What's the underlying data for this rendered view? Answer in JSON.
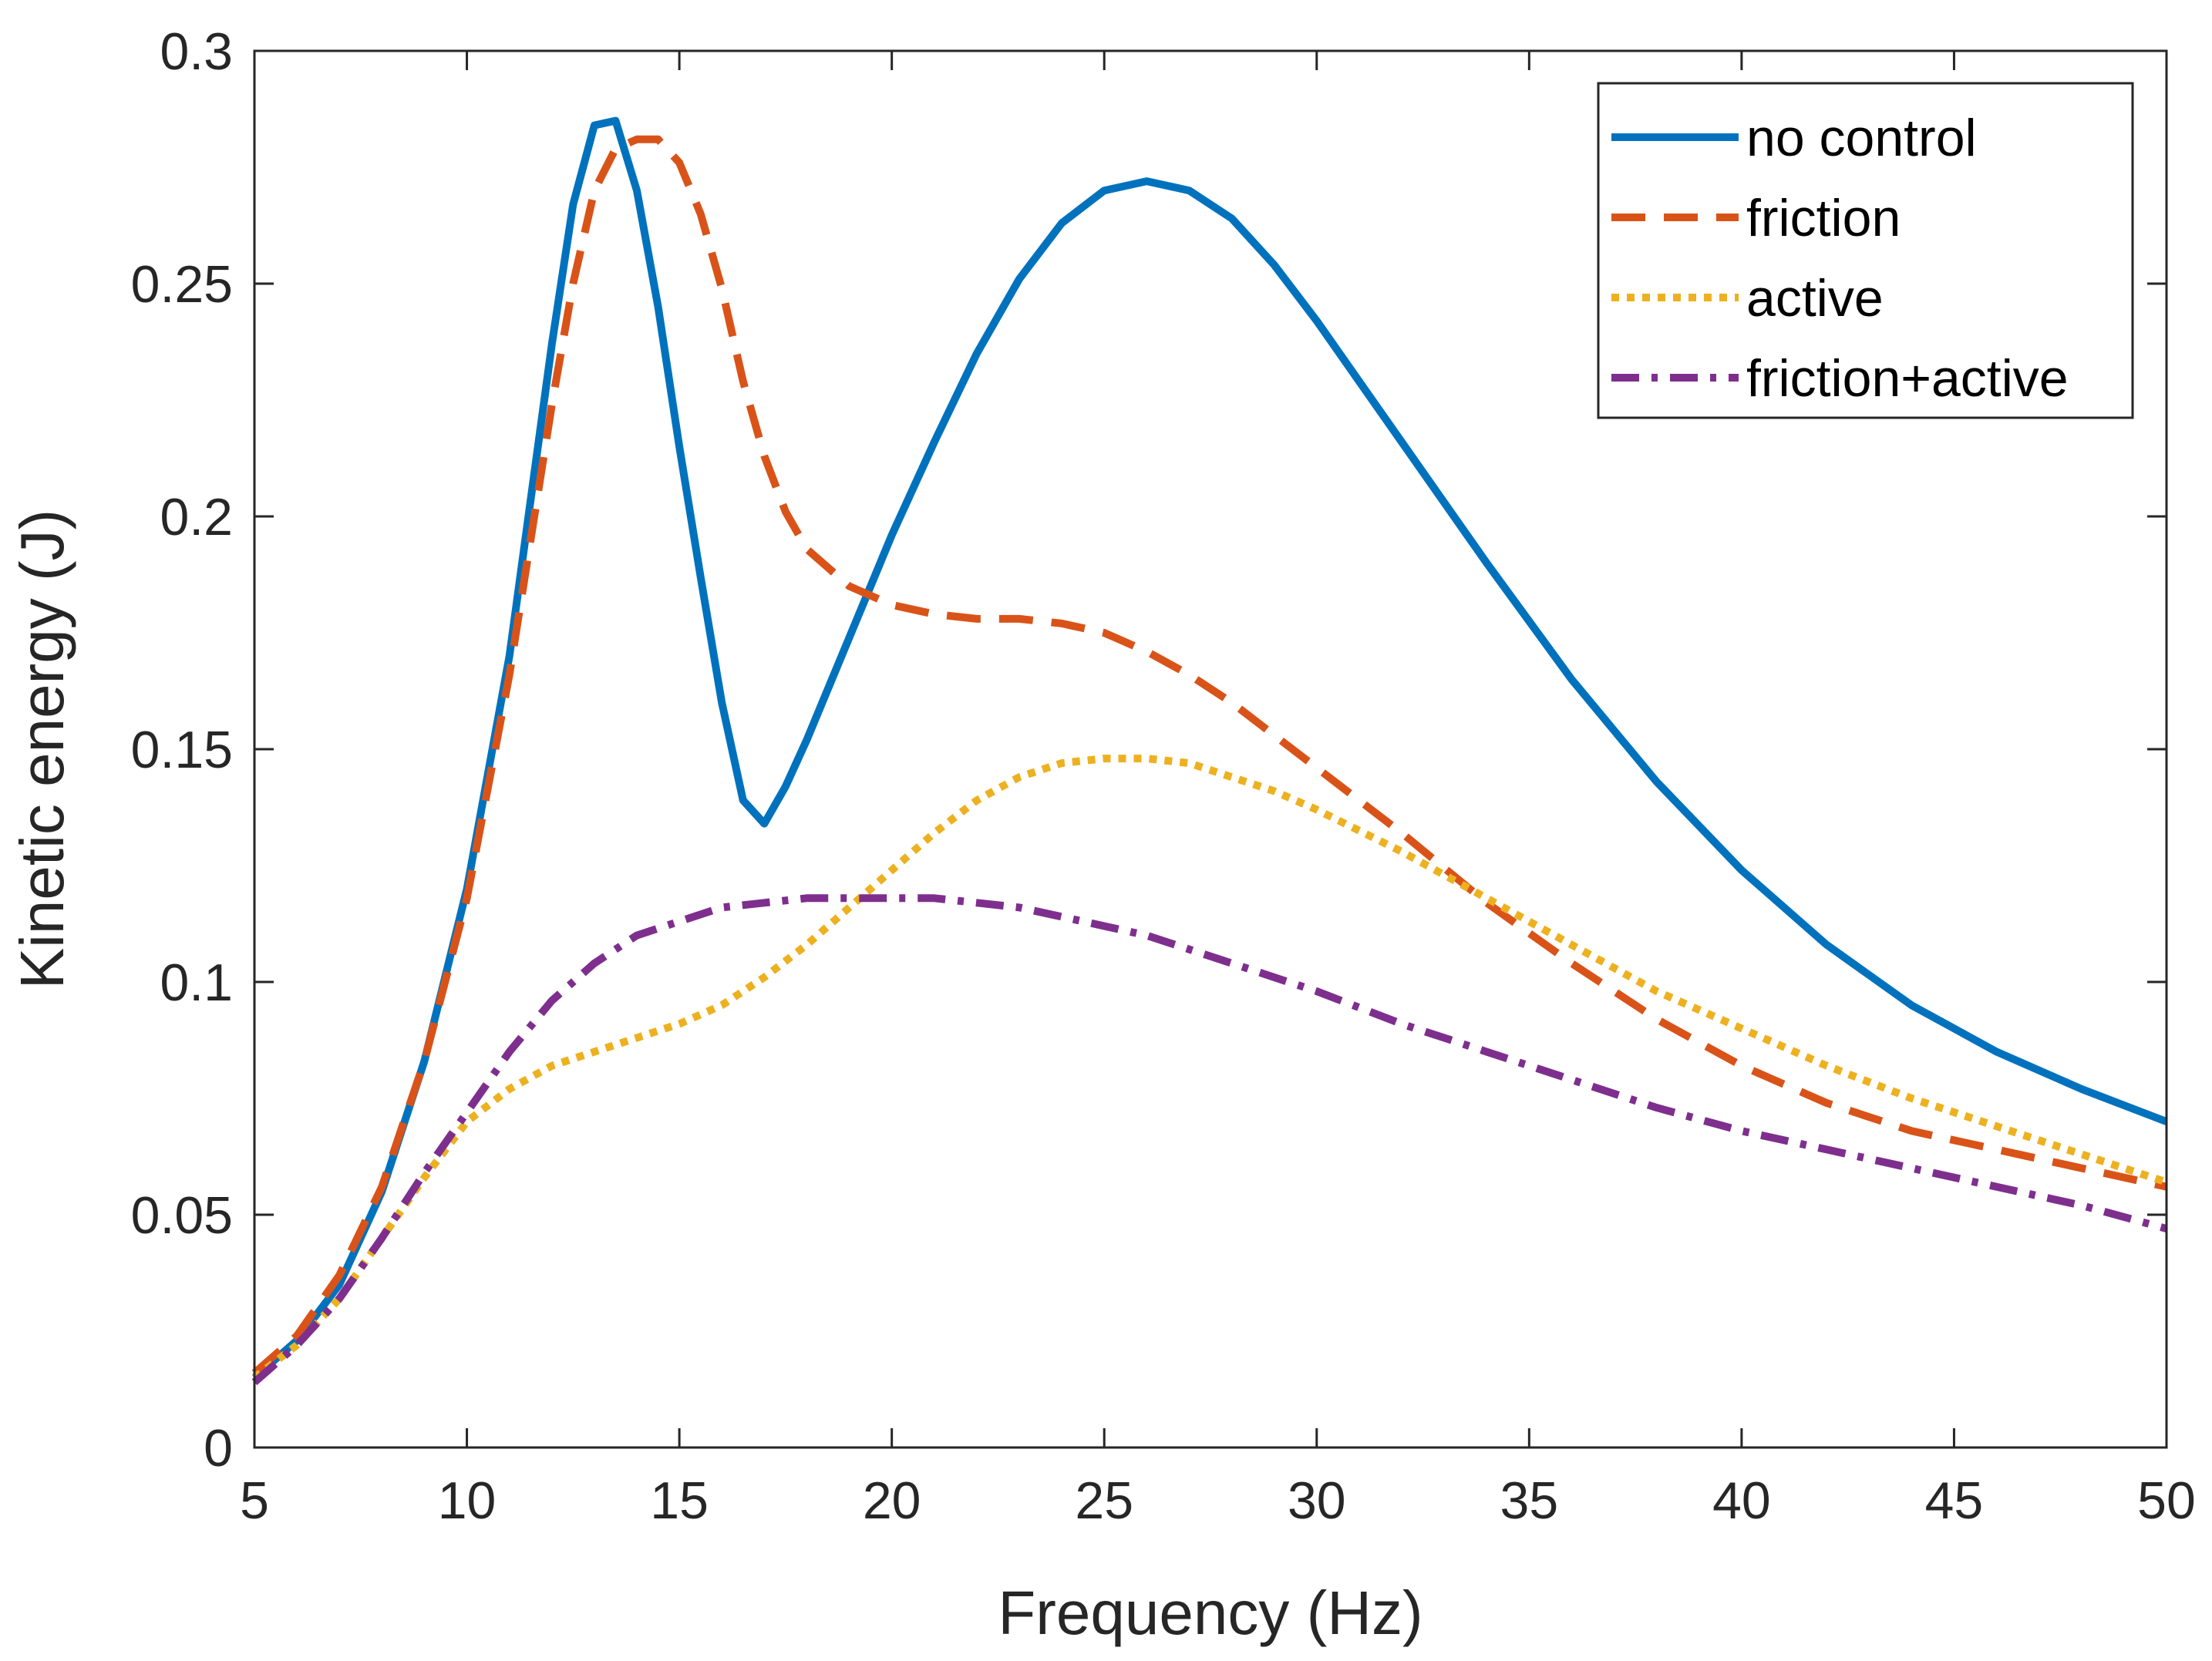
{
  "chart_data": {
    "type": "line",
    "title": "",
    "xlabel": "Frequency (Hz)",
    "ylabel": "Kinetic energy (J)",
    "xlim": [
      5,
      50
    ],
    "ylim": [
      0,
      0.3
    ],
    "xticks": [
      5,
      10,
      15,
      20,
      25,
      30,
      35,
      40,
      45,
      50
    ],
    "xtick_labels": [
      "5",
      "10",
      "15",
      "20",
      "25",
      "30",
      "35",
      "40",
      "45",
      "50"
    ],
    "yticks": [
      0,
      0.05,
      0.1,
      0.15,
      0.2,
      0.25,
      0.3
    ],
    "ytick_labels": [
      "0",
      "0.05",
      "0.1",
      "0.15",
      "0.2",
      "0.25",
      "0.3"
    ],
    "grid": false,
    "legend_position": "top-right",
    "series": [
      {
        "name": "no control",
        "color": "#0072BD",
        "style": "solid",
        "x": [
          5,
          6,
          7,
          8,
          9,
          10,
          11,
          12,
          12.5,
          13,
          13.5,
          14,
          14.5,
          15,
          15.5,
          16,
          16.5,
          17,
          17.5,
          18,
          19,
          20,
          21,
          22,
          23,
          24,
          25,
          26,
          27,
          28,
          29,
          30,
          32,
          34,
          36,
          38,
          40,
          42,
          44,
          46,
          48,
          50
        ],
        "y": [
          0.015,
          0.023,
          0.035,
          0.055,
          0.083,
          0.12,
          0.17,
          0.237,
          0.267,
          0.284,
          0.285,
          0.27,
          0.245,
          0.215,
          0.187,
          0.16,
          0.139,
          0.134,
          0.142,
          0.152,
          0.174,
          0.196,
          0.216,
          0.235,
          0.251,
          0.263,
          0.27,
          0.272,
          0.27,
          0.264,
          0.254,
          0.242,
          0.216,
          0.19,
          0.165,
          0.143,
          0.124,
          0.108,
          0.095,
          0.085,
          0.077,
          0.07
        ]
      },
      {
        "name": "friction",
        "color": "#D95319",
        "style": "dashed",
        "x": [
          5,
          6,
          7,
          8,
          9,
          10,
          11,
          12,
          12.5,
          13,
          13.5,
          14,
          14.5,
          15,
          15.5,
          16,
          16.5,
          17,
          17.5,
          18,
          19,
          20,
          21,
          22,
          23,
          24,
          25,
          26,
          27,
          28,
          29,
          30,
          32,
          34,
          36,
          38,
          40,
          42,
          44,
          46,
          48,
          50
        ],
        "y": [
          0.016,
          0.024,
          0.037,
          0.056,
          0.083,
          0.118,
          0.166,
          0.224,
          0.25,
          0.27,
          0.279,
          0.281,
          0.281,
          0.276,
          0.265,
          0.249,
          0.229,
          0.213,
          0.201,
          0.193,
          0.185,
          0.181,
          0.179,
          0.178,
          0.178,
          0.177,
          0.175,
          0.171,
          0.166,
          0.16,
          0.153,
          0.146,
          0.132,
          0.117,
          0.104,
          0.092,
          0.082,
          0.074,
          0.068,
          0.064,
          0.06,
          0.056
        ]
      },
      {
        "name": "active",
        "color": "#EDB120",
        "style": "dotted",
        "x": [
          5,
          6,
          7,
          8,
          9,
          10,
          11,
          12,
          13,
          14,
          15,
          16,
          17,
          18,
          19,
          20,
          21,
          22,
          23,
          24,
          25,
          26,
          27,
          28,
          29,
          30,
          32,
          34,
          36,
          38,
          40,
          42,
          44,
          46,
          48,
          50
        ],
        "y": [
          0.015,
          0.022,
          0.032,
          0.045,
          0.058,
          0.07,
          0.077,
          0.082,
          0.085,
          0.088,
          0.091,
          0.095,
          0.101,
          0.108,
          0.116,
          0.124,
          0.132,
          0.139,
          0.144,
          0.147,
          0.148,
          0.148,
          0.147,
          0.144,
          0.141,
          0.137,
          0.128,
          0.118,
          0.108,
          0.098,
          0.09,
          0.082,
          0.075,
          0.069,
          0.063,
          0.057
        ]
      },
      {
        "name": "friction+active",
        "color": "#7E2F8E",
        "style": "dashdot",
        "x": [
          5,
          6,
          7,
          8,
          9,
          10,
          11,
          12,
          13,
          14,
          15,
          16,
          17,
          18,
          19,
          20,
          21,
          22,
          23,
          24,
          25,
          26,
          27,
          28,
          29,
          30,
          32,
          34,
          36,
          38,
          40,
          42,
          44,
          46,
          48,
          50
        ],
        "y": [
          0.014,
          0.022,
          0.032,
          0.045,
          0.059,
          0.072,
          0.085,
          0.096,
          0.104,
          0.11,
          0.113,
          0.116,
          0.117,
          0.118,
          0.118,
          0.118,
          0.118,
          0.117,
          0.116,
          0.114,
          0.112,
          0.11,
          0.107,
          0.104,
          0.101,
          0.098,
          0.091,
          0.085,
          0.079,
          0.073,
          0.068,
          0.064,
          0.06,
          0.056,
          0.052,
          0.047
        ]
      }
    ]
  }
}
